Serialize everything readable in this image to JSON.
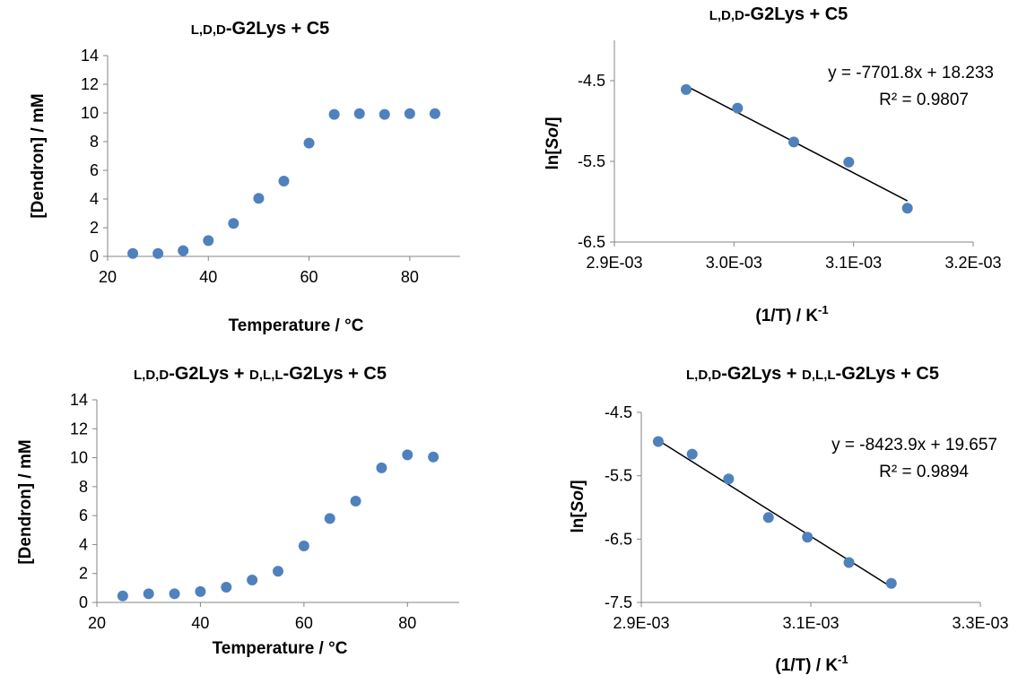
{
  "chart_data": [
    {
      "type": "scatter",
      "title": {
        "a": "L,D,D",
        "b": "-G2Lys + C5"
      },
      "xlabel": "Temperature / °C",
      "ylabel": "[Dendron] / mM",
      "xlim": [
        20,
        90
      ],
      "ylim": [
        0,
        14
      ],
      "xticks": [
        "20",
        "40",
        "60",
        "80"
      ],
      "yticks": [
        "0",
        "2",
        "4",
        "6",
        "8",
        "10",
        "12",
        "14"
      ],
      "x": [
        25,
        30,
        35,
        40,
        45,
        50,
        55,
        60,
        65,
        70,
        75,
        80,
        85
      ],
      "y": [
        0.2,
        0.2,
        0.4,
        1.1,
        2.3,
        4.05,
        5.25,
        7.9,
        9.9,
        9.95,
        9.9,
        9.95,
        9.95
      ],
      "marker_color": "#4f81bd"
    },
    {
      "type": "scatter",
      "title": {
        "a": "L,D,D",
        "b": "-G2Lys + C5"
      },
      "xlabel": {
        "main": "(1/T) / K",
        "sup": "-1"
      },
      "ylabel": {
        "pre": "ln[",
        "italic": "Sol",
        "post": "]"
      },
      "xlim": [
        0.0029,
        0.0032
      ],
      "ylim": [
        -6.5,
        -4.0
      ],
      "xticks": [
        "2.9E-03",
        "3.0E-03",
        "3.1E-03",
        "3.2E-03"
      ],
      "yticks": [
        "-4.5",
        "-5.5",
        "-6.5"
      ],
      "x": [
        0.00296,
        0.003003,
        0.00305,
        0.003096,
        0.003145
      ],
      "y": [
        -4.61,
        -4.84,
        -5.26,
        -5.51,
        -6.08
      ],
      "trendline": {
        "slope": -7701.8,
        "intercept": 18.233,
        "x_range": [
          0.00296,
          0.003145
        ]
      },
      "equation": "y = -7701.8x + 18.233",
      "r2": "R² = 0.9807",
      "marker_color": "#4f81bd"
    },
    {
      "type": "scatter",
      "title": {
        "a": "L,D,D",
        "b": "-G2Lys + ",
        "c": "D,L,L",
        "d": "-G2Lys + C5"
      },
      "xlabel": "Temperature / °C",
      "ylabel": "[Dendron] / mM",
      "xlim": [
        20,
        90
      ],
      "ylim": [
        0,
        14
      ],
      "xticks": [
        "20",
        "40",
        "60",
        "80"
      ],
      "yticks": [
        "0",
        "2",
        "4",
        "6",
        "8",
        "10",
        "12",
        "14"
      ],
      "x": [
        25,
        30,
        35,
        40,
        45,
        50,
        55,
        60,
        65,
        70,
        75,
        80,
        85
      ],
      "y": [
        0.45,
        0.6,
        0.6,
        0.75,
        1.05,
        1.55,
        2.15,
        3.9,
        5.8,
        7.0,
        9.3,
        10.2,
        10.05
      ],
      "marker_color": "#4f81bd"
    },
    {
      "type": "scatter",
      "title": {
        "a": "L,D,D",
        "b": "-G2Lys + ",
        "c": "D,L,L",
        "d": "-G2Lys + C5"
      },
      "xlabel": {
        "main": "(1/T) / K",
        "sup": "-1"
      },
      "ylabel": {
        "pre": "ln[",
        "italic": "Sol",
        "post": "]"
      },
      "xlim": [
        0.0029,
        0.0033
      ],
      "ylim": [
        -7.5,
        -4.5
      ],
      "xticks": [
        "2.9E-03",
        "3.1E-03",
        "3.3E-03"
      ],
      "yticks": [
        "-4.5",
        "-5.5",
        "-6.5",
        "-7.5"
      ],
      "x": [
        0.00292,
        0.00296,
        0.003003,
        0.00305,
        0.003096,
        0.003145,
        0.003195
      ],
      "y": [
        -4.96,
        -5.16,
        -5.55,
        -6.16,
        -6.47,
        -6.87,
        -7.2
      ],
      "trendline": {
        "slope": -8423.9,
        "intercept": 19.657,
        "x_range": [
          0.00292,
          0.003195
        ]
      },
      "equation": "y = -8423.9x + 19.657",
      "r2": "R² = 0.9894",
      "marker_color": "#4f81bd"
    }
  ]
}
